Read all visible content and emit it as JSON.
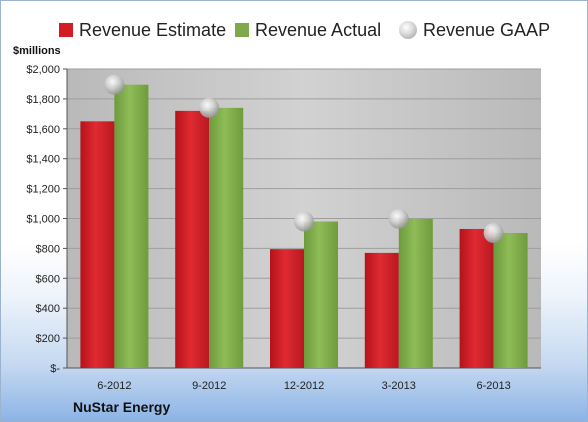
{
  "chart_data": {
    "type": "bar",
    "unit_label": "$millions",
    "categories": [
      "6-2012",
      "9-2012",
      "12-2012",
      "3-2013",
      "6-2013"
    ],
    "series": [
      {
        "name": "Revenue Estimate",
        "values": [
          1650,
          1720,
          795,
          770,
          930
        ],
        "color": "#d41c25",
        "kind": "bar"
      },
      {
        "name": "Revenue Actual",
        "values": [
          1895,
          1740,
          980,
          998,
          903
        ],
        "color": "#7fa94a",
        "kind": "bar"
      },
      {
        "name": "Revenue GAAP",
        "values": [
          1895,
          1740,
          980,
          998,
          903
        ],
        "color": "#c0c0c0",
        "kind": "marker"
      }
    ],
    "ylim": [
      0,
      2000
    ],
    "yticks": [
      {
        "value": 0,
        "label": "$-"
      },
      {
        "value": 200,
        "label": "$200"
      },
      {
        "value": 400,
        "label": "$400"
      },
      {
        "value": 600,
        "label": "$600"
      },
      {
        "value": 800,
        "label": "$800"
      },
      {
        "value": 1000,
        "label": "$1,000"
      },
      {
        "value": 1200,
        "label": "$1,200"
      },
      {
        "value": 1400,
        "label": "$1,400"
      },
      {
        "value": 1600,
        "label": "$1,600"
      },
      {
        "value": 1800,
        "label": "$1,800"
      },
      {
        "value": 2000,
        "label": "$2,000"
      }
    ],
    "grid": true,
    "legend_position": "top"
  },
  "footer": {
    "company": "NuStar Energy"
  },
  "colors": {
    "plot_background": "#c9c9c9",
    "gridline": "#9e9e9e"
  }
}
